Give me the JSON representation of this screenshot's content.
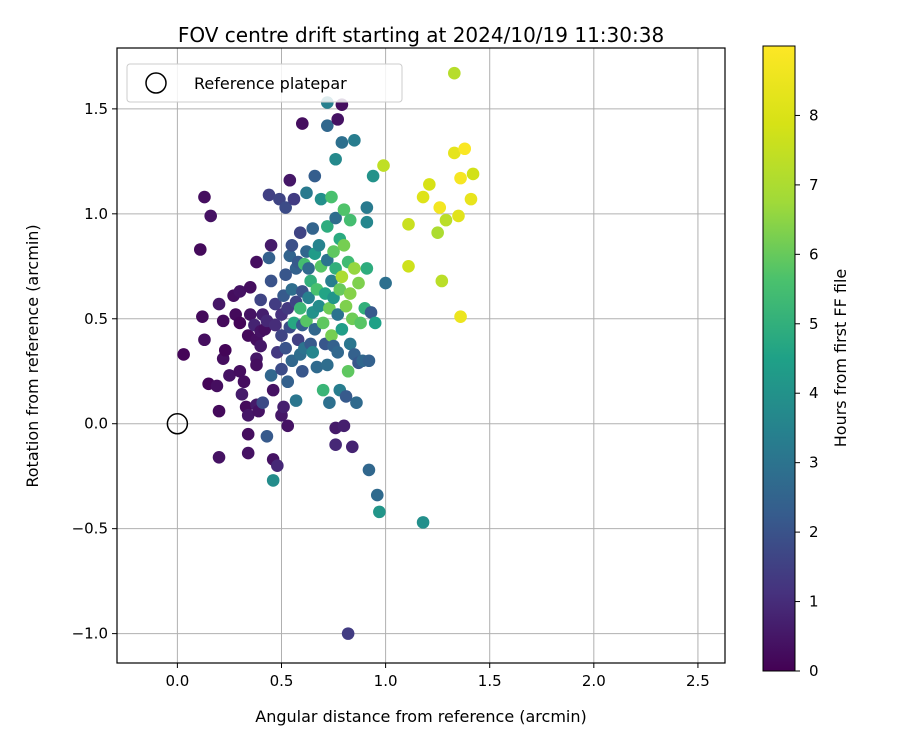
{
  "chart_data": {
    "type": "scatter",
    "title": "FOV centre drift starting at 2024/10/19 11:30:38",
    "xlabel": "Angular distance from reference (arcmin)",
    "ylabel": "Rotation from reference (arcmin)",
    "xlim": [
      -0.29,
      2.63
    ],
    "ylim": [
      -1.14,
      1.79
    ],
    "x_ticks": [
      0.0,
      0.5,
      1.0,
      1.5,
      2.0,
      2.5
    ],
    "x_tick_labels": [
      "0.0",
      "0.5",
      "1.0",
      "1.5",
      "2.0",
      "2.5"
    ],
    "y_ticks": [
      -1.0,
      -0.5,
      0.0,
      0.5,
      1.0,
      1.5
    ],
    "y_tick_labels": [
      "−1.0",
      "−0.5",
      "0.0",
      "0.5",
      "1.0",
      "1.5"
    ],
    "grid": true,
    "legend": {
      "placement": "top-left",
      "entries": [
        "Reference platepar"
      ]
    },
    "reference_point": {
      "x": 0.0,
      "y": 0.0
    },
    "colorbar": {
      "label": "Hours from first FF file",
      "range": [
        0,
        9
      ],
      "ticks": [
        0,
        1,
        2,
        3,
        4,
        5,
        6,
        7,
        8
      ],
      "tick_labels": [
        "0",
        "1",
        "2",
        "3",
        "4",
        "5",
        "6",
        "7",
        "8"
      ],
      "colormap": "viridis"
    },
    "points": [
      {
        "x": 0.03,
        "y": 0.33,
        "c": 0.1
      },
      {
        "x": 0.11,
        "y": 0.83,
        "c": 0.2
      },
      {
        "x": 0.13,
        "y": 1.08,
        "c": 0.3
      },
      {
        "x": 0.16,
        "y": 0.99,
        "c": 0.4
      },
      {
        "x": 0.12,
        "y": 0.51,
        "c": 0.2
      },
      {
        "x": 0.13,
        "y": 0.4,
        "c": 0.3
      },
      {
        "x": 0.15,
        "y": 0.19,
        "c": 0.1
      },
      {
        "x": 0.19,
        "y": 0.18,
        "c": 0.3
      },
      {
        "x": 0.2,
        "y": 0.06,
        "c": 0.2
      },
      {
        "x": 0.2,
        "y": -0.16,
        "c": 0.4
      },
      {
        "x": 0.2,
        "y": 0.57,
        "c": 0.5
      },
      {
        "x": 0.22,
        "y": 0.49,
        "c": 0.2
      },
      {
        "x": 0.22,
        "y": 0.31,
        "c": 0.3
      },
      {
        "x": 0.23,
        "y": 0.35,
        "c": 0.1
      },
      {
        "x": 0.25,
        "y": 0.23,
        "c": 0.4
      },
      {
        "x": 0.27,
        "y": 0.61,
        "c": 0.3
      },
      {
        "x": 0.28,
        "y": 0.52,
        "c": 0.2
      },
      {
        "x": 0.3,
        "y": 0.63,
        "c": 0.4
      },
      {
        "x": 0.3,
        "y": 0.48,
        "c": 0.1
      },
      {
        "x": 0.3,
        "y": 0.25,
        "c": 0.3
      },
      {
        "x": 0.31,
        "y": 0.14,
        "c": 0.6
      },
      {
        "x": 0.32,
        "y": 0.2,
        "c": 0.3
      },
      {
        "x": 0.33,
        "y": 0.08,
        "c": 0.2
      },
      {
        "x": 0.34,
        "y": 0.04,
        "c": 0.5
      },
      {
        "x": 0.34,
        "y": -0.05,
        "c": 0.3
      },
      {
        "x": 0.34,
        "y": -0.14,
        "c": 0.4
      },
      {
        "x": 0.34,
        "y": 0.42,
        "c": 0.2
      },
      {
        "x": 0.35,
        "y": 0.52,
        "c": 0.4
      },
      {
        "x": 0.35,
        "y": 0.65,
        "c": 0.3
      },
      {
        "x": 0.37,
        "y": 0.47,
        "c": 0.8
      },
      {
        "x": 0.38,
        "y": 0.4,
        "c": 0.3
      },
      {
        "x": 0.38,
        "y": 0.31,
        "c": 0.5
      },
      {
        "x": 0.38,
        "y": 0.28,
        "c": 0.3
      },
      {
        "x": 0.38,
        "y": 0.09,
        "c": 0.6
      },
      {
        "x": 0.38,
        "y": 0.77,
        "c": 0.3
      },
      {
        "x": 0.39,
        "y": 0.06,
        "c": 0.4
      },
      {
        "x": 0.4,
        "y": 0.59,
        "c": 1.6
      },
      {
        "x": 0.4,
        "y": 0.44,
        "c": 0.4
      },
      {
        "x": 0.4,
        "y": 0.37,
        "c": 0.5
      },
      {
        "x": 0.41,
        "y": 0.1,
        "c": 1.8
      },
      {
        "x": 0.41,
        "y": 0.52,
        "c": 0.7
      },
      {
        "x": 0.42,
        "y": 0.45,
        "c": 0.3
      },
      {
        "x": 0.43,
        "y": 0.49,
        "c": 0.9
      },
      {
        "x": 0.43,
        "y": -0.06,
        "c": 2.2
      },
      {
        "x": 0.44,
        "y": 0.79,
        "c": 2.4
      },
      {
        "x": 0.44,
        "y": 1.09,
        "c": 1.5
      },
      {
        "x": 0.45,
        "y": 0.85,
        "c": 0.6
      },
      {
        "x": 0.45,
        "y": 0.68,
        "c": 2.0
      },
      {
        "x": 0.45,
        "y": 0.23,
        "c": 2.6
      },
      {
        "x": 0.46,
        "y": 0.16,
        "c": 0.4
      },
      {
        "x": 0.46,
        "y": -0.17,
        "c": 0.4
      },
      {
        "x": 0.46,
        "y": -0.27,
        "c": 3.8
      },
      {
        "x": 0.47,
        "y": 0.57,
        "c": 1.4
      },
      {
        "x": 0.47,
        "y": 0.47,
        "c": 1.0
      },
      {
        "x": 0.48,
        "y": 0.34,
        "c": 1.3
      },
      {
        "x": 0.48,
        "y": -0.2,
        "c": 0.9
      },
      {
        "x": 0.49,
        "y": 1.07,
        "c": 1.6
      },
      {
        "x": 0.5,
        "y": 0.52,
        "c": 1.1
      },
      {
        "x": 0.5,
        "y": 0.42,
        "c": 1.6
      },
      {
        "x": 0.5,
        "y": 0.26,
        "c": 1.8
      },
      {
        "x": 0.5,
        "y": 0.04,
        "c": 0.5
      },
      {
        "x": 0.51,
        "y": 0.61,
        "c": 2.2
      },
      {
        "x": 0.51,
        "y": 0.08,
        "c": 0.7
      },
      {
        "x": 0.52,
        "y": 1.03,
        "c": 1.8
      },
      {
        "x": 0.52,
        "y": 0.71,
        "c": 2.1
      },
      {
        "x": 0.52,
        "y": 0.36,
        "c": 2.0
      },
      {
        "x": 0.53,
        "y": 0.55,
        "c": 1.3
      },
      {
        "x": 0.53,
        "y": 0.2,
        "c": 2.4
      },
      {
        "x": 0.53,
        "y": -0.01,
        "c": 0.4
      },
      {
        "x": 0.54,
        "y": 1.16,
        "c": 0.5
      },
      {
        "x": 0.54,
        "y": 0.8,
        "c": 2.5
      },
      {
        "x": 0.54,
        "y": 0.46,
        "c": 1.8
      },
      {
        "x": 0.55,
        "y": 0.64,
        "c": 2.8
      },
      {
        "x": 0.55,
        "y": 0.85,
        "c": 1.9
      },
      {
        "x": 0.55,
        "y": 0.3,
        "c": 2.6
      },
      {
        "x": 0.56,
        "y": 0.48,
        "c": 4.7
      },
      {
        "x": 0.56,
        "y": 1.07,
        "c": 1.4
      },
      {
        "x": 0.57,
        "y": 0.74,
        "c": 2.4
      },
      {
        "x": 0.57,
        "y": 0.58,
        "c": 1.6
      },
      {
        "x": 0.57,
        "y": 0.11,
        "c": 3.1
      },
      {
        "x": 0.58,
        "y": 0.77,
        "c": 2.2
      },
      {
        "x": 0.58,
        "y": 0.4,
        "c": 1.5
      },
      {
        "x": 0.59,
        "y": 0.55,
        "c": 5.3
      },
      {
        "x": 0.59,
        "y": 0.33,
        "c": 2.8
      },
      {
        "x": 0.59,
        "y": 0.91,
        "c": 1.6
      },
      {
        "x": 0.6,
        "y": 1.43,
        "c": 0.3
      },
      {
        "x": 0.6,
        "y": 0.63,
        "c": 2.0
      },
      {
        "x": 0.6,
        "y": 0.47,
        "c": 2.3
      },
      {
        "x": 0.6,
        "y": 0.25,
        "c": 2.1
      },
      {
        "x": 0.61,
        "y": 0.76,
        "c": 5.5
      },
      {
        "x": 0.61,
        "y": 0.36,
        "c": 3.0
      },
      {
        "x": 0.62,
        "y": 1.1,
        "c": 3.2
      },
      {
        "x": 0.62,
        "y": 0.82,
        "c": 2.6
      },
      {
        "x": 0.62,
        "y": 0.49,
        "c": 5.8
      },
      {
        "x": 0.63,
        "y": 0.6,
        "c": 3.4
      },
      {
        "x": 0.63,
        "y": 0.74,
        "c": 2.7
      },
      {
        "x": 0.64,
        "y": 0.38,
        "c": 2.2
      },
      {
        "x": 0.64,
        "y": 0.68,
        "c": 5.0
      },
      {
        "x": 0.65,
        "y": 0.93,
        "c": 2.5
      },
      {
        "x": 0.65,
        "y": 0.53,
        "c": 4.0
      },
      {
        "x": 0.65,
        "y": 0.34,
        "c": 3.6
      },
      {
        "x": 0.66,
        "y": 1.18,
        "c": 2.3
      },
      {
        "x": 0.66,
        "y": 0.81,
        "c": 4.3
      },
      {
        "x": 0.66,
        "y": 0.45,
        "c": 2.6
      },
      {
        "x": 0.67,
        "y": 0.64,
        "c": 5.6
      },
      {
        "x": 0.67,
        "y": 0.27,
        "c": 2.7
      },
      {
        "x": 0.68,
        "y": 0.56,
        "c": 3.8
      },
      {
        "x": 0.68,
        "y": 0.85,
        "c": 3.5
      },
      {
        "x": 0.69,
        "y": 1.07,
        "c": 3.9
      },
      {
        "x": 0.69,
        "y": 0.75,
        "c": 5.8
      },
      {
        "x": 0.7,
        "y": 0.48,
        "c": 5.9
      },
      {
        "x": 0.7,
        "y": 0.16,
        "c": 5.2
      },
      {
        "x": 0.71,
        "y": 0.38,
        "c": 2.1
      },
      {
        "x": 0.71,
        "y": 0.62,
        "c": 4.6
      },
      {
        "x": 0.72,
        "y": 1.53,
        "c": 3.4
      },
      {
        "x": 0.72,
        "y": 1.42,
        "c": 2.6
      },
      {
        "x": 0.72,
        "y": 0.94,
        "c": 4.9
      },
      {
        "x": 0.72,
        "y": 0.78,
        "c": 3.0
      },
      {
        "x": 0.72,
        "y": 0.28,
        "c": 2.8
      },
      {
        "x": 0.73,
        "y": 0.1,
        "c": 2.9
      },
      {
        "x": 0.73,
        "y": 0.55,
        "c": 6.1
      },
      {
        "x": 0.74,
        "y": 1.08,
        "c": 5.6
      },
      {
        "x": 0.74,
        "y": 0.68,
        "c": 3.3
      },
      {
        "x": 0.74,
        "y": 0.42,
        "c": 6.2
      },
      {
        "x": 0.75,
        "y": 0.82,
        "c": 5.9
      },
      {
        "x": 0.75,
        "y": 0.6,
        "c": 4.1
      },
      {
        "x": 0.75,
        "y": 0.37,
        "c": 2.4
      },
      {
        "x": 0.76,
        "y": 1.26,
        "c": 3.7
      },
      {
        "x": 0.76,
        "y": 0.98,
        "c": 2.8
      },
      {
        "x": 0.76,
        "y": 0.74,
        "c": 5.0
      },
      {
        "x": 0.76,
        "y": -0.1,
        "c": 0.9
      },
      {
        "x": 0.76,
        "y": -0.02,
        "c": 0.6
      },
      {
        "x": 0.77,
        "y": 1.45,
        "c": 0.4
      },
      {
        "x": 0.77,
        "y": 0.52,
        "c": 3.0
      },
      {
        "x": 0.77,
        "y": 0.34,
        "c": 2.6
      },
      {
        "x": 0.78,
        "y": 0.88,
        "c": 4.8
      },
      {
        "x": 0.78,
        "y": 0.64,
        "c": 6.0
      },
      {
        "x": 0.78,
        "y": 0.16,
        "c": 3.3
      },
      {
        "x": 0.79,
        "y": 1.52,
        "c": 0.3
      },
      {
        "x": 0.79,
        "y": 1.34,
        "c": 2.9
      },
      {
        "x": 0.79,
        "y": 0.7,
        "c": 7.0
      },
      {
        "x": 0.79,
        "y": 0.45,
        "c": 4.4
      },
      {
        "x": 0.8,
        "y": 1.02,
        "c": 5.7
      },
      {
        "x": 0.8,
        "y": 0.85,
        "c": 6.2
      },
      {
        "x": 0.8,
        "y": -0.01,
        "c": 0.7
      },
      {
        "x": 0.81,
        "y": 0.56,
        "c": 6.3
      },
      {
        "x": 0.81,
        "y": 0.13,
        "c": 2.2
      },
      {
        "x": 0.82,
        "y": 0.25,
        "c": 5.9
      },
      {
        "x": 0.82,
        "y": 0.77,
        "c": 5.4
      },
      {
        "x": 0.82,
        "y": -1.0,
        "c": 1.4
      },
      {
        "x": 0.83,
        "y": 0.97,
        "c": 5.5
      },
      {
        "x": 0.83,
        "y": 0.62,
        "c": 6.4
      },
      {
        "x": 0.83,
        "y": 0.38,
        "c": 3.1
      },
      {
        "x": 0.84,
        "y": 0.5,
        "c": 6.1
      },
      {
        "x": 0.84,
        "y": -0.11,
        "c": 0.8
      },
      {
        "x": 0.85,
        "y": 0.74,
        "c": 6.6
      },
      {
        "x": 0.85,
        "y": 1.35,
        "c": 3.3
      },
      {
        "x": 0.85,
        "y": 0.33,
        "c": 2.4
      },
      {
        "x": 0.86,
        "y": 0.1,
        "c": 2.7
      },
      {
        "x": 0.87,
        "y": 0.67,
        "c": 6.3
      },
      {
        "x": 0.87,
        "y": 0.29,
        "c": 2.1
      },
      {
        "x": 0.88,
        "y": 0.48,
        "c": 5.8
      },
      {
        "x": 0.89,
        "y": 0.3,
        "c": 2.6
      },
      {
        "x": 0.9,
        "y": 0.55,
        "c": 5.0
      },
      {
        "x": 0.91,
        "y": 1.03,
        "c": 3.2
      },
      {
        "x": 0.91,
        "y": 0.96,
        "c": 3.6
      },
      {
        "x": 0.91,
        "y": 0.74,
        "c": 4.9
      },
      {
        "x": 0.92,
        "y": 0.3,
        "c": 2.4
      },
      {
        "x": 0.92,
        "y": -0.22,
        "c": 2.6
      },
      {
        "x": 0.93,
        "y": 0.53,
        "c": 2.2
      },
      {
        "x": 0.94,
        "y": 1.18,
        "c": 4.0
      },
      {
        "x": 0.95,
        "y": 0.48,
        "c": 4.5
      },
      {
        "x": 0.96,
        "y": -0.34,
        "c": 2.7
      },
      {
        "x": 0.97,
        "y": -0.42,
        "c": 4.1
      },
      {
        "x": 0.99,
        "y": 1.23,
        "c": 7.4
      },
      {
        "x": 1.0,
        "y": 0.67,
        "c": 2.9
      },
      {
        "x": 1.11,
        "y": 0.95,
        "c": 7.6
      },
      {
        "x": 1.11,
        "y": 0.75,
        "c": 7.7
      },
      {
        "x": 1.18,
        "y": -0.47,
        "c": 3.9
      },
      {
        "x": 1.18,
        "y": 1.08,
        "c": 8.1
      },
      {
        "x": 1.21,
        "y": 1.14,
        "c": 7.9
      },
      {
        "x": 1.25,
        "y": 0.91,
        "c": 7.0
      },
      {
        "x": 1.26,
        "y": 1.03,
        "c": 8.7
      },
      {
        "x": 1.27,
        "y": 0.68,
        "c": 7.3
      },
      {
        "x": 1.29,
        "y": 0.97,
        "c": 7.3
      },
      {
        "x": 1.33,
        "y": 1.29,
        "c": 8.3
      },
      {
        "x": 1.33,
        "y": 1.67,
        "c": 7.2
      },
      {
        "x": 1.35,
        "y": 0.99,
        "c": 8.2
      },
      {
        "x": 1.36,
        "y": 1.17,
        "c": 8.8
      },
      {
        "x": 1.36,
        "y": 0.51,
        "c": 8.5
      },
      {
        "x": 1.38,
        "y": 1.31,
        "c": 8.9
      },
      {
        "x": 1.41,
        "y": 1.07,
        "c": 8.4
      },
      {
        "x": 1.42,
        "y": 1.19,
        "c": 7.8
      }
    ]
  }
}
